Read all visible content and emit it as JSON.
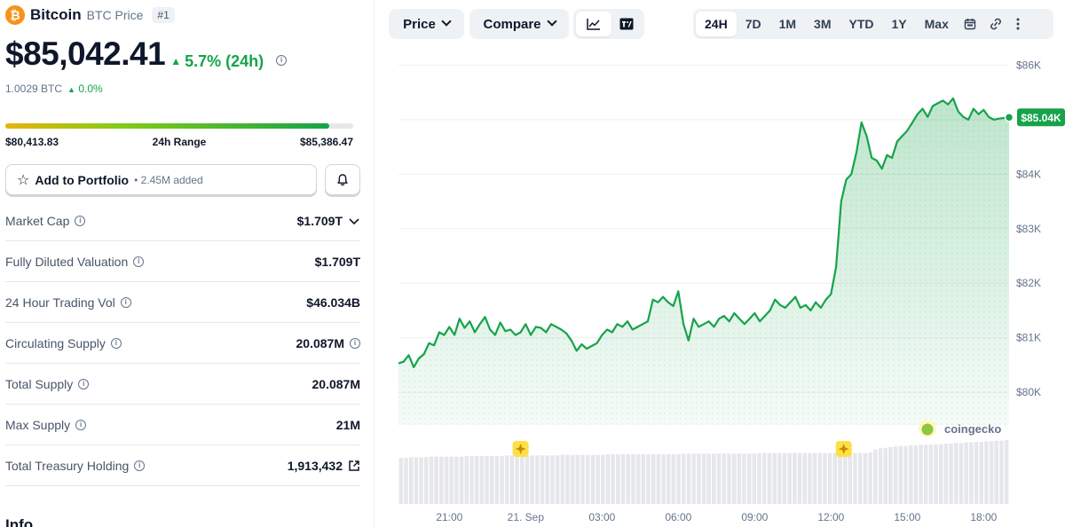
{
  "coin": {
    "logo_glyph": "₿",
    "name": "Bitcoin",
    "symbol_label": "BTC Price",
    "rank": "#1",
    "price": "$85,042.41",
    "change_24h": "5.7% (24h)",
    "btc_value": "1.0029 BTC",
    "btc_change": "0.0%",
    "accent_color": "#f7931a",
    "up_color": "#16a34a"
  },
  "range": {
    "low": "$80,413.83",
    "label": "24h Range",
    "high": "$85,386.47",
    "fill_fraction": 0.93
  },
  "portfolio": {
    "button_label": "Add to Portfolio",
    "added_text": "• 2.45M added"
  },
  "stats": [
    {
      "label": "Market Cap",
      "value": "$1.709T",
      "trailing": "chevron-down-icon"
    },
    {
      "label": "Fully Diluted Valuation",
      "value": "$1.709T",
      "trailing": ""
    },
    {
      "label": "24 Hour Trading Vol",
      "value": "$46.034B",
      "trailing": ""
    },
    {
      "label": "Circulating Supply",
      "value": "20.087M",
      "trailing": "info-icon"
    },
    {
      "label": "Total Supply",
      "value": "20.087M",
      "trailing": ""
    },
    {
      "label": "Max Supply",
      "value": "21M",
      "trailing": ""
    },
    {
      "label": "Total Treasury Holding",
      "value": "1,913,432",
      "trailing": "external-link-icon"
    }
  ],
  "info_heading": "Info",
  "toolbar": {
    "price_label": "Price",
    "compare_label": "Compare",
    "chart_type_icons": [
      "line-chart-icon",
      "tradingview-icon"
    ],
    "ranges": [
      "24H",
      "7D",
      "1M",
      "3M",
      "YTD",
      "1Y",
      "Max"
    ],
    "active_range": "24H",
    "extra_icons": [
      "calendar-icon",
      "link-icon",
      "more-icon"
    ]
  },
  "chart_data": {
    "type": "area",
    "y_ticks": [
      80000,
      81000,
      82000,
      83000,
      84000,
      85000,
      86000
    ],
    "y_tick_labels": [
      "$80K",
      "$81K",
      "$82K",
      "$83K",
      "$84K",
      "",
      "$86K"
    ],
    "ylim": [
      79400,
      86300
    ],
    "x_tick_labels": [
      "21:00",
      "21. Sep",
      "03:00",
      "06:00",
      "09:00",
      "12:00",
      "15:00",
      "18:00"
    ],
    "x_tick_hours": [
      2,
      5,
      8,
      11,
      14,
      17,
      20,
      23
    ],
    "xlim_hours": [
      0,
      24
    ],
    "current_price_label": "$85.04K",
    "current_price": 85042,
    "watermark": "coingecko",
    "line_color": "#16a34a",
    "x_hours": [
      0,
      0.2,
      0.4,
      0.6,
      0.8,
      1.0,
      1.2,
      1.4,
      1.6,
      1.8,
      2.0,
      2.2,
      2.4,
      2.6,
      2.8,
      3.0,
      3.2,
      3.4,
      3.6,
      3.8,
      4.0,
      4.2,
      4.4,
      4.6,
      4.8,
      5.0,
      5.2,
      5.4,
      5.6,
      5.8,
      6.0,
      6.2,
      6.4,
      6.6,
      6.8,
      7.0,
      7.2,
      7.4,
      7.6,
      7.8,
      8.0,
      8.2,
      8.4,
      8.6,
      8.8,
      9.0,
      9.2,
      9.4,
      9.6,
      9.8,
      10.0,
      10.2,
      10.4,
      10.6,
      10.8,
      11.0,
      11.2,
      11.4,
      11.6,
      11.8,
      12.0,
      12.2,
      12.4,
      12.6,
      12.8,
      13.0,
      13.2,
      13.4,
      13.6,
      13.8,
      14.0,
      14.2,
      14.4,
      14.6,
      14.8,
      15.0,
      15.2,
      15.4,
      15.6,
      15.8,
      16.0,
      16.2,
      16.4,
      16.6,
      16.8,
      17.0,
      17.2,
      17.4,
      17.6,
      17.8,
      18.0,
      18.2,
      18.4,
      18.6,
      18.8,
      19.0,
      19.2,
      19.4,
      19.6,
      19.8,
      20.0,
      20.2,
      20.4,
      20.6,
      20.8,
      21.0,
      21.2,
      21.4,
      21.6,
      21.8,
      22.0,
      22.2,
      22.4,
      22.6,
      22.8,
      23.0,
      23.2,
      23.4,
      23.6,
      23.8,
      24.0
    ],
    "values": [
      80530,
      80560,
      80680,
      80460,
      80620,
      80700,
      80900,
      80860,
      81100,
      81050,
      81200,
      81050,
      81350,
      81180,
      81300,
      81100,
      81250,
      81380,
      81150,
      81050,
      81280,
      81120,
      81150,
      81050,
      81100,
      81250,
      81050,
      81200,
      81180,
      81100,
      81250,
      81200,
      81150,
      81080,
      80950,
      80760,
      80880,
      80800,
      80850,
      80900,
      81050,
      81150,
      81100,
      81250,
      81200,
      81300,
      81150,
      81200,
      81250,
      81300,
      81700,
      81650,
      81750,
      81650,
      81580,
      81850,
      81250,
      80950,
      81350,
      81200,
      81250,
      81300,
      81200,
      81350,
      81400,
      81300,
      81450,
      81350,
      81250,
      81350,
      81450,
      81300,
      81400,
      81500,
      81700,
      81600,
      81550,
      81650,
      81750,
      81550,
      81600,
      81500,
      81650,
      81550,
      81700,
      81800,
      82300,
      83500,
      83900,
      84000,
      84400,
      84950,
      84700,
      84300,
      84250,
      84100,
      84350,
      84300,
      84600,
      84700,
      84800,
      84950,
      85100,
      85200,
      85050,
      85250,
      85300,
      85350,
      85280,
      85390,
      85150,
      85050,
      85000,
      85200,
      85100,
      85180,
      85050,
      85000,
      85020,
      85030,
      85042
    ],
    "volume": [
      0.78,
      0.78,
      0.79,
      0.79,
      0.79,
      0.79,
      0.8,
      0.8,
      0.8,
      0.8,
      0.8,
      0.8,
      0.8,
      0.81,
      0.81,
      0.81,
      0.81,
      0.81,
      0.81,
      0.81,
      0.81,
      0.82,
      0.82,
      0.82,
      0.82,
      0.82,
      0.82,
      0.82,
      0.82,
      0.82,
      0.82,
      0.82,
      0.83,
      0.83,
      0.83,
      0.83,
      0.83,
      0.83,
      0.83,
      0.83,
      0.83,
      0.84,
      0.84,
      0.84,
      0.84,
      0.84,
      0.84,
      0.84,
      0.84,
      0.84,
      0.84,
      0.84,
      0.84,
      0.84,
      0.84,
      0.84,
      0.85,
      0.85,
      0.85,
      0.85,
      0.85,
      0.85,
      0.85,
      0.85,
      0.85,
      0.85,
      0.85,
      0.85,
      0.85,
      0.85,
      0.85,
      0.86,
      0.86,
      0.86,
      0.86,
      0.86,
      0.86,
      0.86,
      0.86,
      0.86,
      0.86,
      0.86,
      0.86,
      0.86,
      0.86,
      0.86,
      0.86,
      0.86,
      0.86,
      0.86,
      0.86,
      0.86,
      0.86,
      0.87,
      0.92,
      0.94,
      0.95,
      0.96,
      0.97,
      0.98,
      0.98,
      0.99,
      0.99,
      1.0,
      1.0,
      1.0,
      1.01,
      1.01,
      1.02,
      1.02,
      1.03,
      1.03,
      1.04,
      1.04,
      1.05,
      1.05,
      1.06,
      1.06,
      1.07,
      1.07,
      1.08
    ],
    "event_markers_hours": [
      4.8,
      17.5
    ]
  }
}
